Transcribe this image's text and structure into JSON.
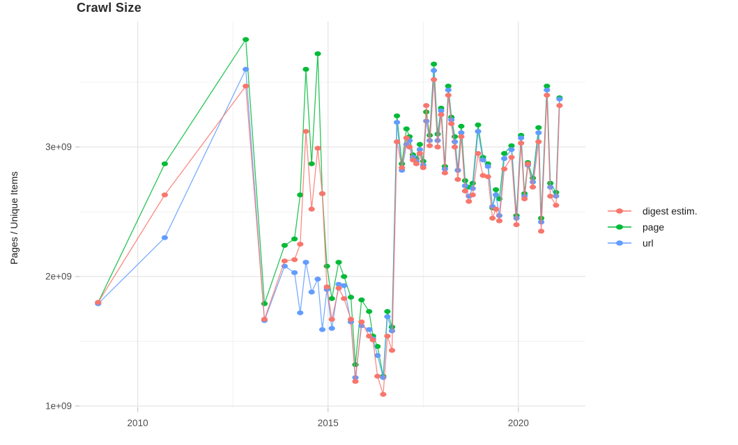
{
  "page_title": "Crawl Size",
  "y_axis_label": "Pages / Unique Items",
  "chart_data": {
    "type": "line",
    "title": "Crawl Size",
    "xlabel": "",
    "ylabel": "Pages / Unique Items",
    "legend_position": "right",
    "grid": true,
    "xlim": [
      2008.47,
      2021.76
    ],
    "ylim_e9": [
      0.987,
      3.968
    ],
    "x_major_ticks": [
      {
        "year": 2010,
        "label": "2010"
      },
      {
        "year": 2015,
        "label": "2015"
      },
      {
        "year": 2020,
        "label": "2020"
      }
    ],
    "x_minor_ticks": [
      2012.5,
      2017.5
    ],
    "y_major_ticks": [
      {
        "value_e9": 1,
        "label": "1e+09"
      },
      {
        "value_e9": 2,
        "label": "2e+09"
      },
      {
        "value_e9": 3,
        "label": "3e+09"
      }
    ],
    "y_minor_ticks_e9": [
      1.5,
      2.5,
      3.5
    ],
    "x_years": [
      2008.96,
      2010.71,
      2012.84,
      2013.33,
      2013.86,
      2014.12,
      2014.27,
      2014.42,
      2014.57,
      2014.73,
      2014.85,
      2014.97,
      2015.1,
      2015.28,
      2015.42,
      2015.6,
      2015.72,
      2015.88,
      2016.08,
      2016.18,
      2016.3,
      2016.45,
      2016.56,
      2016.68,
      2016.81,
      2016.94,
      2017.06,
      2017.14,
      2017.23,
      2017.32,
      2017.41,
      2017.5,
      2017.58,
      2017.67,
      2017.78,
      2017.88,
      2017.97,
      2018.07,
      2018.16,
      2018.24,
      2018.33,
      2018.41,
      2018.5,
      2018.6,
      2018.7,
      2018.8,
      2018.94,
      2019.07,
      2019.2,
      2019.32,
      2019.41,
      2019.5,
      2019.63,
      2019.82,
      2019.95,
      2020.07,
      2020.16,
      2020.25,
      2020.38,
      2020.53,
      2020.6,
      2020.75,
      2020.84,
      2020.99,
      2021.08
    ],
    "series": [
      {
        "name": "digest estim.",
        "color": "#F8766D",
        "values_e9": [
          1.8,
          2.63,
          3.47,
          1.67,
          2.12,
          2.13,
          2.25,
          3.12,
          2.52,
          2.99,
          2.64,
          1.92,
          1.67,
          1.91,
          1.83,
          1.67,
          1.19,
          1.65,
          1.54,
          1.51,
          1.23,
          1.09,
          1.54,
          1.43,
          3.04,
          2.84,
          3.07,
          3.0,
          2.9,
          2.87,
          2.95,
          2.84,
          3.32,
          3.01,
          3.52,
          3.0,
          3.25,
          2.8,
          3.4,
          3.18,
          3.0,
          2.75,
          3.08,
          2.66,
          2.58,
          2.63,
          2.95,
          2.78,
          2.77,
          2.45,
          2.52,
          2.43,
          2.83,
          2.92,
          2.4,
          3.03,
          2.6,
          2.87,
          2.69,
          3.04,
          2.35,
          3.4,
          2.62,
          2.55,
          3.32
        ]
      },
      {
        "name": "page",
        "color": "#00BA38",
        "values_e9": [
          1.8,
          2.87,
          3.83,
          1.79,
          2.24,
          2.29,
          2.63,
          3.6,
          2.87,
          3.72,
          2.64,
          2.08,
          1.83,
          2.11,
          2.0,
          1.84,
          1.32,
          1.82,
          1.73,
          1.54,
          1.46,
          1.23,
          1.73,
          1.61,
          3.24,
          2.87,
          3.14,
          3.08,
          2.94,
          2.91,
          3.02,
          2.89,
          3.27,
          3.09,
          3.64,
          3.1,
          3.3,
          2.85,
          3.47,
          3.23,
          3.08,
          2.82,
          3.16,
          2.74,
          2.69,
          2.72,
          3.17,
          2.92,
          2.87,
          2.53,
          2.67,
          2.6,
          2.95,
          3.01,
          2.47,
          3.09,
          2.64,
          2.88,
          2.76,
          3.15,
          2.45,
          3.47,
          2.72,
          2.65,
          3.38
        ]
      },
      {
        "name": "url",
        "color": "#619CFF",
        "values_e9": [
          1.79,
          2.3,
          3.6,
          1.66,
          2.08,
          2.03,
          1.72,
          2.11,
          1.88,
          1.98,
          1.59,
          1.9,
          1.6,
          1.94,
          1.93,
          1.65,
          1.22,
          1.62,
          1.59,
          1.52,
          1.39,
          1.22,
          1.69,
          1.58,
          3.19,
          2.82,
          3.02,
          3.05,
          2.92,
          2.89,
          2.98,
          2.86,
          3.2,
          3.05,
          3.59,
          3.05,
          3.28,
          2.83,
          3.44,
          3.21,
          3.04,
          2.82,
          3.11,
          2.7,
          2.62,
          2.68,
          3.12,
          2.9,
          2.85,
          2.54,
          2.63,
          2.47,
          2.91,
          2.98,
          2.45,
          3.07,
          2.62,
          2.86,
          2.73,
          3.11,
          2.42,
          3.44,
          2.69,
          2.62,
          3.37
        ]
      }
    ],
    "draw_order": [
      1,
      2,
      0
    ]
  }
}
